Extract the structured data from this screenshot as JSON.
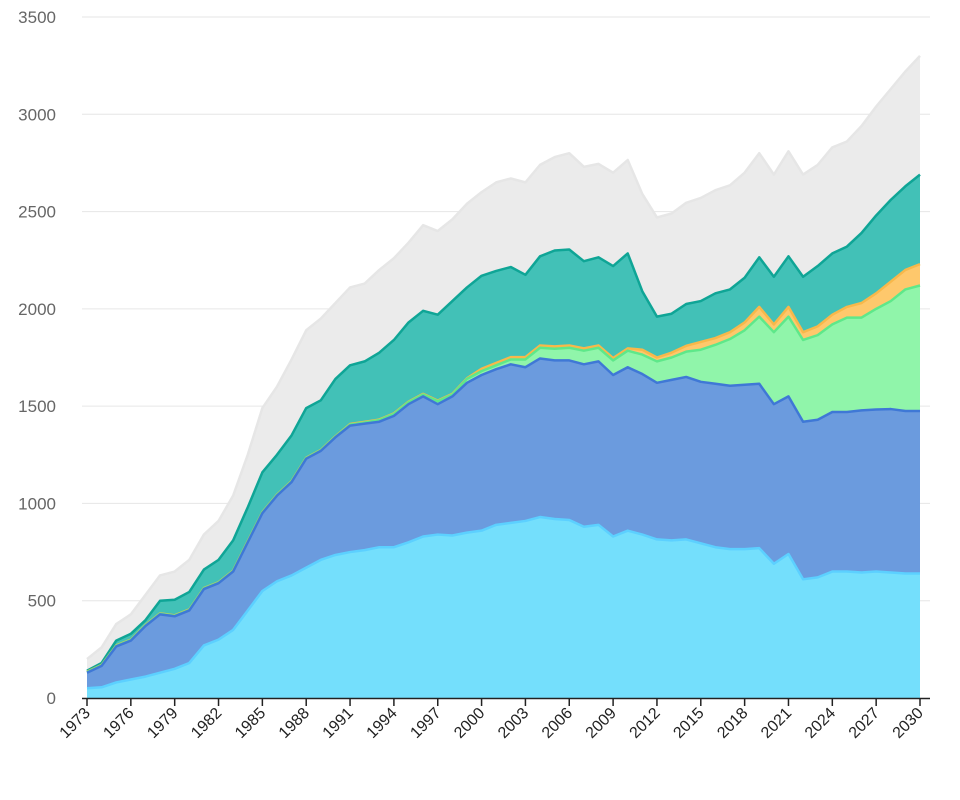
{
  "chart_data": {
    "type": "area",
    "stacked": true,
    "title": "",
    "xlabel": "",
    "ylabel": "",
    "ylim": [
      0,
      3500
    ],
    "yticks": [
      0,
      500,
      1000,
      1500,
      2000,
      2500,
      3000,
      3500
    ],
    "xlim": [
      1973,
      2030
    ],
    "xticks": [
      1973,
      1976,
      1979,
      1982,
      1985,
      1988,
      1991,
      1994,
      1997,
      2000,
      2003,
      2006,
      2009,
      2012,
      2015,
      2018,
      2021,
      2024,
      2027,
      2030
    ],
    "grid": "horizontal",
    "legend": "none",
    "x_start": 1973,
    "series": [
      {
        "color": "#74dffc",
        "stroke": "#5cd0ff",
        "values": [
          50,
          55,
          80,
          95,
          110,
          130,
          150,
          180,
          270,
          300,
          350,
          450,
          550,
          600,
          630,
          670,
          710,
          735,
          750,
          760,
          775,
          775,
          800,
          830,
          840,
          835,
          850,
          860,
          890,
          900,
          910,
          930,
          920,
          915,
          880,
          890,
          830,
          860,
          840,
          815,
          810,
          815,
          795,
          775,
          765,
          765,
          770,
          690,
          740,
          610,
          620,
          650,
          650,
          645,
          650,
          645,
          640,
          640
        ]
      },
      {
        "color": "#6b9bde",
        "stroke": "#3f78d6",
        "values": [
          80,
          110,
          185,
          200,
          260,
          300,
          270,
          270,
          290,
          290,
          300,
          350,
          400,
          440,
          480,
          560,
          560,
          605,
          650,
          650,
          645,
          675,
          710,
          720,
          670,
          715,
          770,
          800,
          800,
          815,
          790,
          815,
          815,
          820,
          835,
          840,
          830,
          840,
          825,
          805,
          825,
          835,
          830,
          840,
          840,
          845,
          845,
          820,
          810,
          810,
          810,
          820,
          820,
          833,
          833,
          840,
          835,
          835
        ]
      },
      {
        "color": "#90f5aa",
        "stroke": "#5ee88a",
        "values": [
          3,
          3,
          3,
          3,
          3,
          3,
          3,
          3,
          3,
          3,
          3,
          3,
          3,
          3,
          3,
          3,
          3,
          3,
          5,
          6,
          8,
          10,
          10,
          10,
          15,
          10,
          20,
          20,
          20,
          25,
          40,
          55,
          60,
          65,
          70,
          70,
          75,
          85,
          100,
          110,
          115,
          130,
          165,
          200,
          240,
          280,
          345,
          370,
          410,
          420,
          435,
          450,
          485,
          477,
          517,
          555,
          625,
          645
        ]
      },
      {
        "color": "#fec86c",
        "stroke": "#f8b84a",
        "values": [
          2,
          2,
          2,
          2,
          2,
          2,
          2,
          2,
          2,
          2,
          2,
          2,
          2,
          2,
          2,
          2,
          2,
          2,
          3,
          3,
          3,
          3,
          3,
          3,
          3,
          3,
          3,
          12,
          12,
          12,
          12,
          12,
          12,
          12,
          12,
          12,
          12,
          12,
          25,
          20,
          25,
          30,
          40,
          35,
          35,
          40,
          50,
          40,
          50,
          40,
          45,
          50,
          55,
          75,
          80,
          100,
          100,
          110
        ]
      },
      {
        "color": "#42c1b7",
        "stroke": "#0fa596",
        "values": [
          5,
          10,
          25,
          30,
          25,
          65,
          80,
          90,
          95,
          115,
          155,
          175,
          205,
          205,
          235,
          255,
          255,
          295,
          302,
          311,
          344,
          377,
          407,
          427,
          442,
          477,
          467,
          478,
          473,
          463,
          423,
          458,
          493,
          493,
          448,
          453,
          473,
          488,
          300,
          210,
          200,
          215,
          210,
          230,
          220,
          230,
          255,
          245,
          260,
          285,
          310,
          315,
          310,
          360,
          400,
          420,
          430,
          460
        ]
      },
      {
        "color": "#ebebeb",
        "stroke": "#e6e6e6",
        "values": [
          60,
          80,
          85,
          100,
          130,
          130,
          145,
          165,
          180,
          200,
          230,
          270,
          330,
          350,
          390,
          400,
          420,
          390,
          400,
          400,
          425,
          420,
          410,
          440,
          430,
          420,
          430,
          430,
          455,
          455,
          475,
          470,
          480,
          495,
          485,
          480,
          480,
          480,
          500,
          510,
          515,
          520,
          530,
          530,
          535,
          540,
          535,
          525,
          540,
          525,
          520,
          545,
          540,
          550,
          560,
          570,
          590,
          610
        ]
      }
    ]
  }
}
